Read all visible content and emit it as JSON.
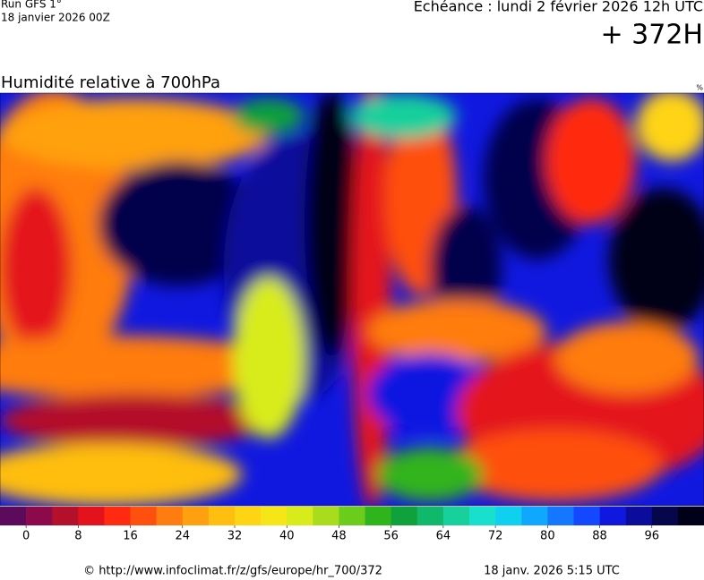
{
  "header": {
    "run": "Run GFS 1°",
    "run_date": "18 janvier 2026 00Z",
    "valid": "Echéance : lundi 2 février 2026 12h UTC",
    "lead": "+ 372H"
  },
  "map": {
    "title": "Humidité relative à 700hPa",
    "unit": "%"
  },
  "colorbar": {
    "colors": [
      "#5c0a5c",
      "#8c0a4c",
      "#b4102c",
      "#e4121c",
      "#ff2a10",
      "#ff5010",
      "#ff7c10",
      "#ffa010",
      "#ffbe10",
      "#ffd414",
      "#f6e618",
      "#d8ec1c",
      "#a8dc1c",
      "#6ccc1c",
      "#30b41c",
      "#10a03c",
      "#10b86c",
      "#18d09c",
      "#18e0cc",
      "#10d0f0",
      "#10a8ff",
      "#1478ff",
      "#1448ff",
      "#1018e0",
      "#0c0c9c",
      "#06064c",
      "#000018"
    ],
    "ticks": [
      0,
      8,
      16,
      24,
      32,
      40,
      48,
      56,
      64,
      72,
      80,
      88,
      96
    ]
  },
  "footer": {
    "source": "© http://www.infoclimat.fr/z/gfs/europe/hr_700/372",
    "generated": "18 janv. 2026  5:15 UTC"
  }
}
